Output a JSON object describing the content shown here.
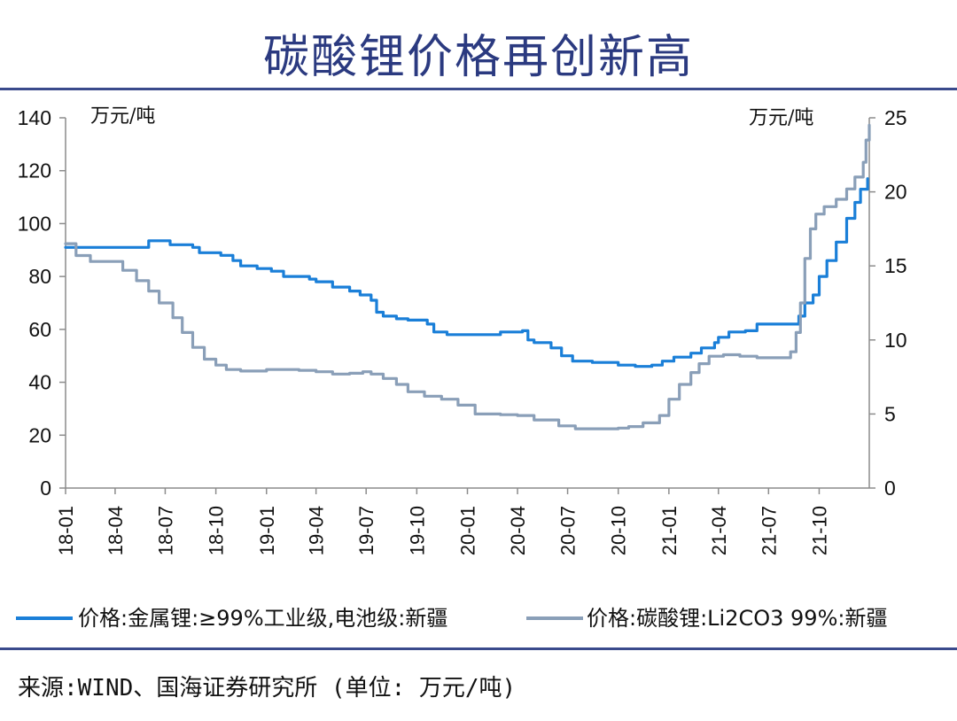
{
  "page": {
    "title": "碳酸锂价格再创新高",
    "source": "来源:WIND、国海证券研究所 (单位: 万元/吨)"
  },
  "chart_data": {
    "type": "line",
    "title": "碳酸锂价格再创新高",
    "left_unit": "万元/吨",
    "right_unit": "万元/吨",
    "x_ticks": [
      "18-01",
      "18-04",
      "18-07",
      "18-10",
      "19-01",
      "19-04",
      "19-07",
      "19-10",
      "20-01",
      "20-04",
      "20-07",
      "20-10",
      "21-01",
      "21-04",
      "21-07",
      "21-10"
    ],
    "x_range": [
      "2018-01",
      "2021-12"
    ],
    "y_left": {
      "min": 0,
      "max": 140,
      "ticks": [
        0,
        20,
        40,
        60,
        80,
        100,
        120,
        140
      ]
    },
    "y_right": {
      "min": 0,
      "max": 25,
      "ticks": [
        0,
        5,
        10,
        15,
        20,
        25
      ]
    },
    "grid": false,
    "legend_position": "bottom",
    "series": [
      {
        "name": "价格:金属锂:≥99%工业级,电池级:新疆",
        "axis": "left",
        "color": "#1a7fd8",
        "points": [
          [
            "2018-01-01",
            91
          ],
          [
            "2018-03-01",
            91
          ],
          [
            "2018-05-15",
            91
          ],
          [
            "2018-06-01",
            93.5
          ],
          [
            "2018-07-01",
            93.5
          ],
          [
            "2018-07-10",
            92
          ],
          [
            "2018-08-20",
            91
          ],
          [
            "2018-09-01",
            89
          ],
          [
            "2018-10-10",
            88
          ],
          [
            "2018-11-01",
            86
          ],
          [
            "2018-11-15",
            84
          ],
          [
            "2018-12-15",
            83
          ],
          [
            "2019-01-10",
            82
          ],
          [
            "2019-02-01",
            80
          ],
          [
            "2019-03-20",
            79
          ],
          [
            "2019-04-01",
            78
          ],
          [
            "2019-05-01",
            76
          ],
          [
            "2019-06-01",
            74.5
          ],
          [
            "2019-06-20",
            73
          ],
          [
            "2019-07-10",
            71
          ],
          [
            "2019-07-20",
            66.5
          ],
          [
            "2019-08-01",
            65
          ],
          [
            "2019-08-25",
            64
          ],
          [
            "2019-09-15",
            63.5
          ],
          [
            "2019-10-20",
            62
          ],
          [
            "2019-11-01",
            59
          ],
          [
            "2019-11-25",
            58
          ],
          [
            "2020-01-01",
            58
          ],
          [
            "2020-03-01",
            59
          ],
          [
            "2020-04-10",
            59.5
          ],
          [
            "2020-04-20",
            56
          ],
          [
            "2020-05-01",
            55
          ],
          [
            "2020-06-01",
            53
          ],
          [
            "2020-06-20",
            50
          ],
          [
            "2020-07-10",
            48
          ],
          [
            "2020-08-15",
            47.5
          ],
          [
            "2020-10-01",
            46.5
          ],
          [
            "2020-11-01",
            46
          ],
          [
            "2020-12-01",
            46.5
          ],
          [
            "2020-12-20",
            48
          ],
          [
            "2021-01-10",
            49.5
          ],
          [
            "2021-02-10",
            51
          ],
          [
            "2021-03-01",
            53
          ],
          [
            "2021-03-25",
            55
          ],
          [
            "2021-04-01",
            57
          ],
          [
            "2021-04-20",
            59
          ],
          [
            "2021-05-20",
            59.5
          ],
          [
            "2021-06-10",
            62
          ],
          [
            "2021-07-01",
            62
          ],
          [
            "2021-08-10",
            62
          ],
          [
            "2021-08-25",
            65
          ],
          [
            "2021-09-05",
            70
          ],
          [
            "2021-09-20",
            73
          ],
          [
            "2021-10-01",
            80
          ],
          [
            "2021-10-15",
            86
          ],
          [
            "2021-11-01",
            93
          ],
          [
            "2021-11-20",
            102
          ],
          [
            "2021-12-05",
            108
          ],
          [
            "2021-12-15",
            113
          ],
          [
            "2021-12-28",
            117
          ]
        ]
      },
      {
        "name": "价格:碳酸锂:Li2CO3 99%:新疆",
        "axis": "right",
        "color": "#8a9fb8",
        "points": [
          [
            "2018-01-01",
            16.5
          ],
          [
            "2018-01-20",
            15.7
          ],
          [
            "2018-02-15",
            15.3
          ],
          [
            "2018-03-01",
            15.3
          ],
          [
            "2018-03-25",
            15.3
          ],
          [
            "2018-04-15",
            14.7
          ],
          [
            "2018-05-10",
            14.0
          ],
          [
            "2018-06-01",
            13.3
          ],
          [
            "2018-06-20",
            12.5
          ],
          [
            "2018-07-15",
            11.5
          ],
          [
            "2018-08-01",
            10.5
          ],
          [
            "2018-08-20",
            9.5
          ],
          [
            "2018-09-10",
            8.7
          ],
          [
            "2018-10-01",
            8.3
          ],
          [
            "2018-10-20",
            8.0
          ],
          [
            "2018-11-15",
            7.9
          ],
          [
            "2019-01-01",
            8.0
          ],
          [
            "2019-03-01",
            7.95
          ],
          [
            "2019-04-01",
            7.85
          ],
          [
            "2019-05-01",
            7.7
          ],
          [
            "2019-06-01",
            7.75
          ],
          [
            "2019-06-25",
            7.85
          ],
          [
            "2019-07-10",
            7.7
          ],
          [
            "2019-08-01",
            7.4
          ],
          [
            "2019-08-25",
            7.0
          ],
          [
            "2019-09-15",
            6.5
          ],
          [
            "2019-10-15",
            6.2
          ],
          [
            "2019-11-15",
            6.0
          ],
          [
            "2019-12-15",
            5.6
          ],
          [
            "2020-01-15",
            5.0
          ],
          [
            "2020-03-01",
            4.95
          ],
          [
            "2020-04-01",
            4.9
          ],
          [
            "2020-05-01",
            4.6
          ],
          [
            "2020-06-15",
            4.2
          ],
          [
            "2020-07-15",
            4.0
          ],
          [
            "2020-09-01",
            4.0
          ],
          [
            "2020-10-01",
            4.05
          ],
          [
            "2020-10-20",
            4.15
          ],
          [
            "2020-11-15",
            4.4
          ],
          [
            "2020-12-15",
            4.9
          ],
          [
            "2021-01-01",
            6.0
          ],
          [
            "2021-01-20",
            7.0
          ],
          [
            "2021-02-10",
            7.8
          ],
          [
            "2021-02-25",
            8.4
          ],
          [
            "2021-03-15",
            8.9
          ],
          [
            "2021-04-10",
            9.0
          ],
          [
            "2021-05-10",
            8.9
          ],
          [
            "2021-06-10",
            8.8
          ],
          [
            "2021-07-15",
            8.8
          ],
          [
            "2021-08-10",
            9.2
          ],
          [
            "2021-08-20",
            10.5
          ],
          [
            "2021-08-28",
            12.5
          ],
          [
            "2021-09-05",
            15.5
          ],
          [
            "2021-09-15",
            17.5
          ],
          [
            "2021-09-25",
            18.5
          ],
          [
            "2021-10-10",
            19.0
          ],
          [
            "2021-11-01",
            19.5
          ],
          [
            "2021-11-20",
            20.2
          ],
          [
            "2021-12-05",
            21.0
          ],
          [
            "2021-12-20",
            22.0
          ],
          [
            "2021-12-25",
            23.5
          ],
          [
            "2021-12-31",
            24.5
          ]
        ]
      }
    ]
  }
}
